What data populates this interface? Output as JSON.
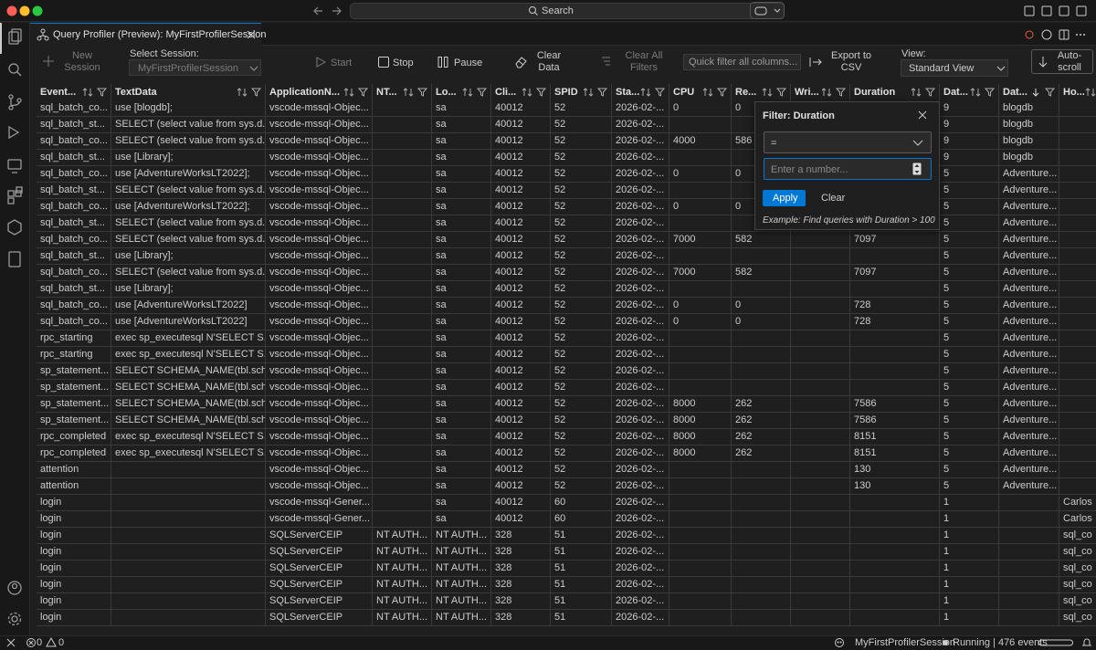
{
  "window": {
    "search": "Search"
  },
  "tab": {
    "title": "Query Profiler (Preview): MyFirstProfilerSession"
  },
  "toolbar": {
    "new_session": "New Session",
    "select_session_label": "Select Session:",
    "session": "MyFirstProfilerSession",
    "start": "Start",
    "stop": "Stop",
    "pause": "Pause",
    "clear_data": "Clear Data",
    "clear_all_filters": "Clear All Filters",
    "quick_filter_placeholder": "Quick filter all columns...",
    "export": "Export to CSV",
    "view_label": "View:",
    "view": "Standard View",
    "auto_scroll": "Auto-scroll"
  },
  "table": {
    "columns": [
      "Event...",
      "TextData",
      "ApplicationN...",
      "NT...",
      "Lo...",
      "Cli...",
      "SPID",
      "Sta...",
      "CPU",
      "Re...",
      "Wri...",
      "Duration",
      "Dat...",
      "Dat...",
      "Ho..."
    ],
    "sorted": {
      "column": 13,
      "direction": "descending"
    },
    "rows": [
      [
        "sql_batch_co...",
        "use [blogdb];",
        "vscode-mssql-Objec...",
        null,
        "sa",
        "40012",
        "52",
        "2026-02-...",
        "0",
        "0",
        null,
        null,
        "9",
        "blogdb",
        null
      ],
      [
        "sql_batch_st...",
        "SELECT (select value from sys.d...",
        "vscode-mssql-Objec...",
        null,
        "sa",
        "40012",
        "52",
        "2026-02-...",
        null,
        null,
        null,
        null,
        "9",
        "blogdb",
        null
      ],
      [
        "sql_batch_co...",
        "SELECT (select value from sys.d...",
        "vscode-mssql-Objec...",
        null,
        "sa",
        "40012",
        "52",
        "2026-02-...",
        "4000",
        "586",
        null,
        null,
        "9",
        "blogdb",
        null
      ],
      [
        "sql_batch_st...",
        "use [Library];",
        "vscode-mssql-Objec...",
        null,
        "sa",
        "40012",
        "52",
        "2026-02-...",
        null,
        null,
        null,
        null,
        "9",
        "blogdb",
        null
      ],
      [
        "sql_batch_co...",
        "use [AdventureWorksLT2022];",
        "vscode-mssql-Objec...",
        null,
        "sa",
        "40012",
        "52",
        "2026-02-...",
        "0",
        "0",
        null,
        null,
        "5",
        "Adventure...",
        null
      ],
      [
        "sql_batch_st...",
        "SELECT (select value from sys.d...",
        "vscode-mssql-Objec...",
        null,
        "sa",
        "40012",
        "52",
        "2026-02-...",
        null,
        null,
        null,
        null,
        "5",
        "Adventure...",
        null
      ],
      [
        "sql_batch_co...",
        "use [AdventureWorksLT2022];",
        "vscode-mssql-Objec...",
        null,
        "sa",
        "40012",
        "52",
        "2026-02-...",
        "0",
        "0",
        null,
        null,
        "5",
        "Adventure...",
        null
      ],
      [
        "sql_batch_st...",
        "SELECT (select value from sys.d...",
        "vscode-mssql-Objec...",
        null,
        "sa",
        "40012",
        "52",
        "2026-02-...",
        null,
        null,
        null,
        null,
        "5",
        "Adventure...",
        null
      ],
      [
        "sql_batch_co...",
        "SELECT (select value from sys.d...",
        "vscode-mssql-Objec...",
        null,
        "sa",
        "40012",
        "52",
        "2026-02-...",
        "7000",
        "582",
        null,
        "7097",
        "5",
        "Adventure...",
        null
      ],
      [
        "sql_batch_st...",
        "use [Library];",
        "vscode-mssql-Objec...",
        null,
        "sa",
        "40012",
        "52",
        "2026-02-...",
        null,
        null,
        null,
        null,
        "5",
        "Adventure...",
        null
      ],
      [
        "sql_batch_co...",
        "SELECT (select value from sys.d...",
        "vscode-mssql-Objec...",
        null,
        "sa",
        "40012",
        "52",
        "2026-02-...",
        "7000",
        "582",
        null,
        "7097",
        "5",
        "Adventure...",
        null
      ],
      [
        "sql_batch_st...",
        "use [Library];",
        "vscode-mssql-Objec...",
        null,
        "sa",
        "40012",
        "52",
        "2026-02-...",
        null,
        null,
        null,
        null,
        "5",
        "Adventure...",
        null
      ],
      [
        "sql_batch_co...",
        "use [AdventureWorksLT2022]",
        "vscode-mssql-Objec...",
        null,
        "sa",
        "40012",
        "52",
        "2026-02-...",
        "0",
        "0",
        null,
        "728",
        "5",
        "Adventure...",
        null
      ],
      [
        "sql_batch_co...",
        "use [AdventureWorksLT2022]",
        "vscode-mssql-Objec...",
        null,
        "sa",
        "40012",
        "52",
        "2026-02-...",
        "0",
        "0",
        null,
        "728",
        "5",
        "Adventure...",
        null
      ],
      [
        "rpc_starting",
        "exec sp_executesql N'SELECT S...",
        "vscode-mssql-Objec...",
        null,
        "sa",
        "40012",
        "52",
        "2026-02-...",
        null,
        null,
        null,
        null,
        "5",
        "Adventure...",
        null
      ],
      [
        "rpc_starting",
        "exec sp_executesql N'SELECT S...",
        "vscode-mssql-Objec...",
        null,
        "sa",
        "40012",
        "52",
        "2026-02-...",
        null,
        null,
        null,
        null,
        "5",
        "Adventure...",
        null
      ],
      [
        "sp_statement...",
        "SELECT SCHEMA_NAME(tbl.sch...",
        "vscode-mssql-Objec...",
        null,
        "sa",
        "40012",
        "52",
        "2026-02-...",
        null,
        null,
        null,
        null,
        "5",
        "Adventure...",
        null
      ],
      [
        "sp_statement...",
        "SELECT SCHEMA_NAME(tbl.sch...",
        "vscode-mssql-Objec...",
        null,
        "sa",
        "40012",
        "52",
        "2026-02-...",
        null,
        null,
        null,
        null,
        "5",
        "Adventure...",
        null
      ],
      [
        "sp_statement...",
        "SELECT SCHEMA_NAME(tbl.sch...",
        "vscode-mssql-Objec...",
        null,
        "sa",
        "40012",
        "52",
        "2026-02-...",
        "8000",
        "262",
        null,
        "7586",
        "5",
        "Adventure...",
        null
      ],
      [
        "sp_statement...",
        "SELECT SCHEMA_NAME(tbl.sch...",
        "vscode-mssql-Objec...",
        null,
        "sa",
        "40012",
        "52",
        "2026-02-...",
        "8000",
        "262",
        null,
        "7586",
        "5",
        "Adventure...",
        null
      ],
      [
        "rpc_completed",
        "exec sp_executesql N'SELECT S...",
        "vscode-mssql-Objec...",
        null,
        "sa",
        "40012",
        "52",
        "2026-02-...",
        "8000",
        "262",
        null,
        "8151",
        "5",
        "Adventure...",
        null
      ],
      [
        "rpc_completed",
        "exec sp_executesql N'SELECT S...",
        "vscode-mssql-Objec...",
        null,
        "sa",
        "40012",
        "52",
        "2026-02-...",
        "8000",
        "262",
        null,
        "8151",
        "5",
        "Adventure...",
        null
      ],
      [
        "attention",
        null,
        "vscode-mssql-Objec...",
        null,
        "sa",
        "40012",
        "52",
        "2026-02-...",
        null,
        null,
        null,
        "130",
        "5",
        "Adventure...",
        null
      ],
      [
        "attention",
        null,
        "vscode-mssql-Objec...",
        null,
        "sa",
        "40012",
        "52",
        "2026-02-...",
        null,
        null,
        null,
        "130",
        "5",
        "Adventure...",
        null
      ],
      [
        "login",
        null,
        "vscode-mssql-Gener...",
        null,
        "sa",
        "40012",
        "60",
        "2026-02-...",
        null,
        null,
        null,
        null,
        "1",
        null,
        "Carlos"
      ],
      [
        "login",
        null,
        "vscode-mssql-Gener...",
        null,
        "sa",
        "40012",
        "60",
        "2026-02-...",
        null,
        null,
        null,
        null,
        "1",
        null,
        "Carlos"
      ],
      [
        "login",
        null,
        "SQLServerCEIP",
        "NT AUTH...",
        "NT AUTH...",
        "328",
        "51",
        "2026-02-...",
        null,
        null,
        null,
        null,
        "1",
        null,
        "sql_co"
      ],
      [
        "login",
        null,
        "SQLServerCEIP",
        "NT AUTH...",
        "NT AUTH...",
        "328",
        "51",
        "2026-02-...",
        null,
        null,
        null,
        null,
        "1",
        null,
        "sql_co"
      ],
      [
        "login",
        null,
        "SQLServerCEIP",
        "NT AUTH...",
        "NT AUTH...",
        "328",
        "51",
        "2026-02-...",
        null,
        null,
        null,
        null,
        "1",
        null,
        "sql_co"
      ],
      [
        "login",
        null,
        "SQLServerCEIP",
        "NT AUTH...",
        "NT AUTH...",
        "328",
        "51",
        "2026-02-...",
        null,
        null,
        null,
        null,
        "1",
        null,
        "sql_co"
      ],
      [
        "login",
        null,
        "SQLServerCEIP",
        "NT AUTH...",
        "NT AUTH...",
        "328",
        "51",
        "2026-02-...",
        null,
        null,
        null,
        null,
        "1",
        null,
        "sql_co"
      ],
      [
        "login",
        null,
        "SQLServerCEIP",
        "NT AUTH...",
        "NT AUTH...",
        "328",
        "51",
        "2026-02-...",
        null,
        null,
        null,
        null,
        "1",
        null,
        "sql_co"
      ]
    ]
  },
  "filter_popup": {
    "title": "Filter: Duration",
    "operator": "=",
    "placeholder": "Enter a number...",
    "apply": "Apply",
    "clear": "Clear",
    "example": "Example: Find queries with Duration > 100"
  },
  "status_bar": {
    "errors": "0",
    "warnings": "0",
    "session": "MyFirstProfilerSession",
    "state": "Running | 476 events"
  }
}
